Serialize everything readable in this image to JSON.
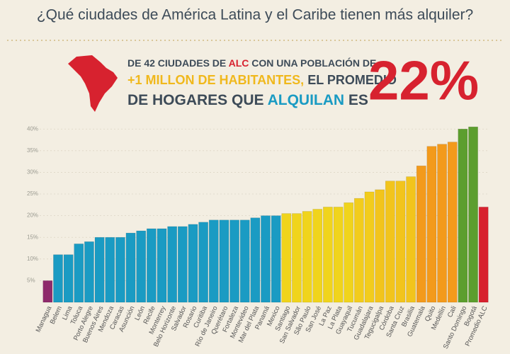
{
  "chart_data": {
    "type": "bar",
    "title": "¿Qué ciudades de América Latina y el Caribe tienen más alquiler?",
    "callout": [
      [
        {
          "text": "DE 42 CIUDADES DE "
        },
        {
          "text": "ALC",
          "color": "#d7222f"
        },
        {
          "text": " CON UNA POBLACIÓN DE"
        }
      ],
      [
        {
          "text": "+1 MILLON DE HABITANTES,",
          "color": "#f0b81c"
        },
        {
          "text": " EL PROMEDIO"
        }
      ],
      [
        {
          "text": "DE HOGARES QUE "
        },
        {
          "text": "ALQUILAN",
          "color": "#1a9bc3"
        },
        {
          "text": " ES"
        }
      ]
    ],
    "highlight": "22%",
    "categories": [
      "Managua",
      "Belem",
      "Lima",
      "Toluca",
      "Porto Alegre",
      "Buenos Aires",
      "Mendoza",
      "Caracas",
      "Asunción",
      "León",
      "Recife",
      "Monterrey",
      "Belo Horizonte",
      "Salvador",
      "Rosario",
      "Curitiba",
      "Río de Janeiro",
      "Querétaro",
      "Fortaleza",
      "Montevideo",
      "Mar del Plata",
      "Panamá",
      "Mexico",
      "Santiago",
      "San Salvador",
      "São Paulo",
      "San José",
      "La Paz",
      "La Plata",
      "Guayaquil",
      "Tucumán",
      "Guadalajara",
      "Tegucigalpa",
      "Córdoba",
      "Santa Cruz",
      "Brasilia",
      "Guatemala",
      "Quito",
      "Medellín",
      "Cali",
      "Santo Domingo",
      "Bogotá",
      "Promedio ALC"
    ],
    "values": [
      5,
      11,
      11,
      13.5,
      14,
      15,
      15,
      15,
      16,
      16.5,
      17,
      17,
      17.5,
      17.5,
      18,
      18.5,
      19,
      19,
      19,
      19,
      19.5,
      20,
      20,
      20.5,
      20.5,
      21,
      21.5,
      22,
      22,
      23,
      24,
      25.5,
      26,
      28,
      28,
      29,
      31.5,
      36,
      36.5,
      37,
      40,
      40.5,
      22
    ],
    "colors": [
      "#8e2a6b",
      "#1a9bc3",
      "#1a9bc3",
      "#1a9bc3",
      "#1a9bc3",
      "#1a9bc3",
      "#1a9bc3",
      "#1a9bc3",
      "#1a9bc3",
      "#1a9bc3",
      "#1a9bc3",
      "#1a9bc3",
      "#1a9bc3",
      "#1a9bc3",
      "#1a9bc3",
      "#1a9bc3",
      "#1a9bc3",
      "#1a9bc3",
      "#1a9bc3",
      "#1a9bc3",
      "#1a9bc3",
      "#1a9bc3",
      "#1a9bc3",
      "#f0d41c",
      "#f0d41c",
      "#f0d41c",
      "#f0d41c",
      "#f0d41c",
      "#f0d41c",
      "#f0d41c",
      "#f2cc1c",
      "#f2cc1c",
      "#f2c41c",
      "#f2c41c",
      "#f2c41c",
      "#f2c41c",
      "#f39a1b",
      "#f39a1b",
      "#f39a1b",
      "#f39a1b",
      "#5c9e2e",
      "#5c9e2e",
      "#d7222f"
    ],
    "ylim": [
      0,
      42
    ],
    "yticks": [
      {
        "value": 5,
        "label": "5%"
      },
      {
        "value": 10,
        "label": "10%"
      },
      {
        "value": 15,
        "label": "15%"
      },
      {
        "value": 20,
        "label": "20%"
      },
      {
        "value": 25,
        "label": "25%"
      },
      {
        "value": 30,
        "label": "30%"
      },
      {
        "value": 35,
        "label": "35%"
      },
      {
        "value": 40,
        "label": "40%"
      }
    ],
    "grid": true
  }
}
